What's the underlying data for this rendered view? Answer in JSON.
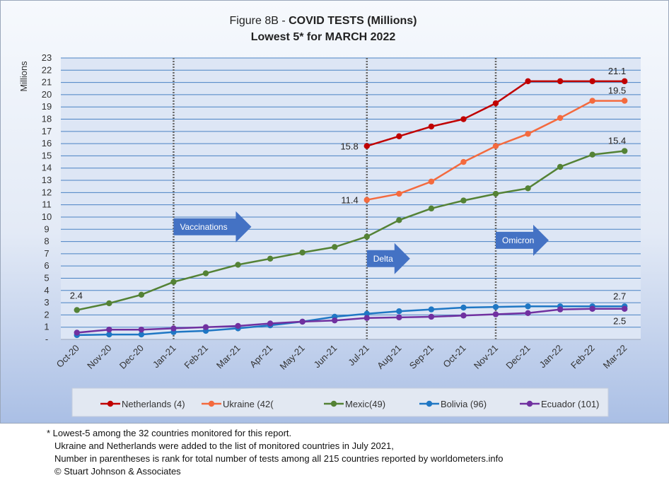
{
  "chart_data": {
    "type": "line",
    "title_prefix": "Figure 8B - ",
    "title_bold": "COVID TESTS (Millions)",
    "subtitle": "Lowest 5* for MARCH 2022",
    "ylabel": "Millions",
    "ylim": [
      0,
      23
    ],
    "y_ticks": [
      "-",
      "1",
      "2",
      "3",
      "4",
      "5",
      "6",
      "7",
      "8",
      "9",
      "10",
      "11",
      "12",
      "13",
      "14",
      "15",
      "16",
      "17",
      "18",
      "19",
      "20",
      "21",
      "22",
      "23"
    ],
    "categories": [
      "Oct-20",
      "Nov-20",
      "Dec-20",
      "Jan-21",
      "Feb-21",
      "Mar-21",
      "Apr-21",
      "May-21",
      "Jun-21",
      "Jul-21",
      "Aug-21",
      "Sep-21",
      "Oct-21",
      "Nov-21",
      "Dec-21",
      "Jan-22",
      "Feb-22",
      "Mar-22"
    ],
    "grid": true,
    "legend_position": "bottom",
    "series": [
      {
        "name": "Netherlands (4)",
        "color": "#c00000",
        "values": [
          null,
          null,
          null,
          null,
          null,
          null,
          null,
          null,
          null,
          15.8,
          16.6,
          17.4,
          18.0,
          19.3,
          21.1,
          21.1,
          21.1,
          21.1
        ]
      },
      {
        "name": "Ukraine (42(",
        "color": "#f46a3e",
        "values": [
          null,
          null,
          null,
          null,
          null,
          null,
          null,
          null,
          null,
          11.4,
          11.9,
          12.9,
          14.5,
          15.8,
          16.8,
          18.1,
          19.5,
          19.5
        ]
      },
      {
        "name": "Mexic(49)",
        "color": "#548235",
        "values": [
          2.4,
          2.95,
          3.65,
          4.7,
          5.4,
          6.1,
          6.6,
          7.1,
          7.55,
          8.4,
          9.75,
          10.7,
          11.35,
          11.9,
          12.35,
          14.1,
          15.1,
          15.4
        ]
      },
      {
        "name": "Bolivia (96)",
        "color": "#1f77c4",
        "values": [
          0.35,
          0.4,
          0.4,
          0.6,
          0.7,
          0.9,
          1.15,
          1.45,
          1.85,
          2.1,
          2.3,
          2.45,
          2.6,
          2.65,
          2.7,
          2.7,
          2.7,
          2.7
        ]
      },
      {
        "name": "Ecuador (101)",
        "color": "#7030a0",
        "values": [
          0.55,
          0.8,
          0.8,
          0.9,
          1.0,
          1.1,
          1.3,
          1.45,
          1.55,
          1.75,
          1.8,
          1.85,
          1.95,
          2.05,
          2.15,
          2.45,
          2.5,
          2.5
        ]
      }
    ],
    "data_labels": [
      {
        "text": "2.4",
        "series": "Mexic(49)",
        "category": "Oct-20"
      },
      {
        "text": "15.8",
        "series": "Netherlands (4)",
        "category": "Jul-21"
      },
      {
        "text": "11.4",
        "series": "Ukraine (42(",
        "category": "Jul-21"
      },
      {
        "text": "21.1",
        "series": "Netherlands (4)",
        "category": "Mar-22"
      },
      {
        "text": "19.5",
        "series": "Ukraine (42(",
        "category": "Mar-22"
      },
      {
        "text": "15.4",
        "series": "Mexic(49)",
        "category": "Mar-22"
      },
      {
        "text": "2.7",
        "series": "Bolivia (96)",
        "category": "Mar-22"
      },
      {
        "text": "2.5",
        "series": "Ecuador (101)",
        "category": "Mar-22"
      }
    ],
    "event_lines": [
      {
        "category": "Jan-21",
        "label": "Vaccinations",
        "label_level": 9.2
      },
      {
        "category": "Jul-21",
        "label": "Delta",
        "label_level": 6.6
      },
      {
        "category": "Nov-21",
        "label": "Omicron",
        "label_level": 8.1
      }
    ],
    "colors": {
      "background_top": "#f6f9fd",
      "background_bottom": "#aabfe5",
      "plot_background": "#dde6f5",
      "gridline": "#4a82c3",
      "arrow": "#4472c4",
      "event_line": "#666666",
      "legend_background": "#e2e8f2"
    }
  },
  "footnotes": [
    "* Lowest-5 among the 32 countries monitored for this report.",
    "Ukraine and Netherlands were added to the list of monitored countries in July 2021,",
    "Number in parentheses is rank for total number of tests among all 215 countries reported by worldometers.info",
    "© Stuart Johnson & Associates"
  ]
}
